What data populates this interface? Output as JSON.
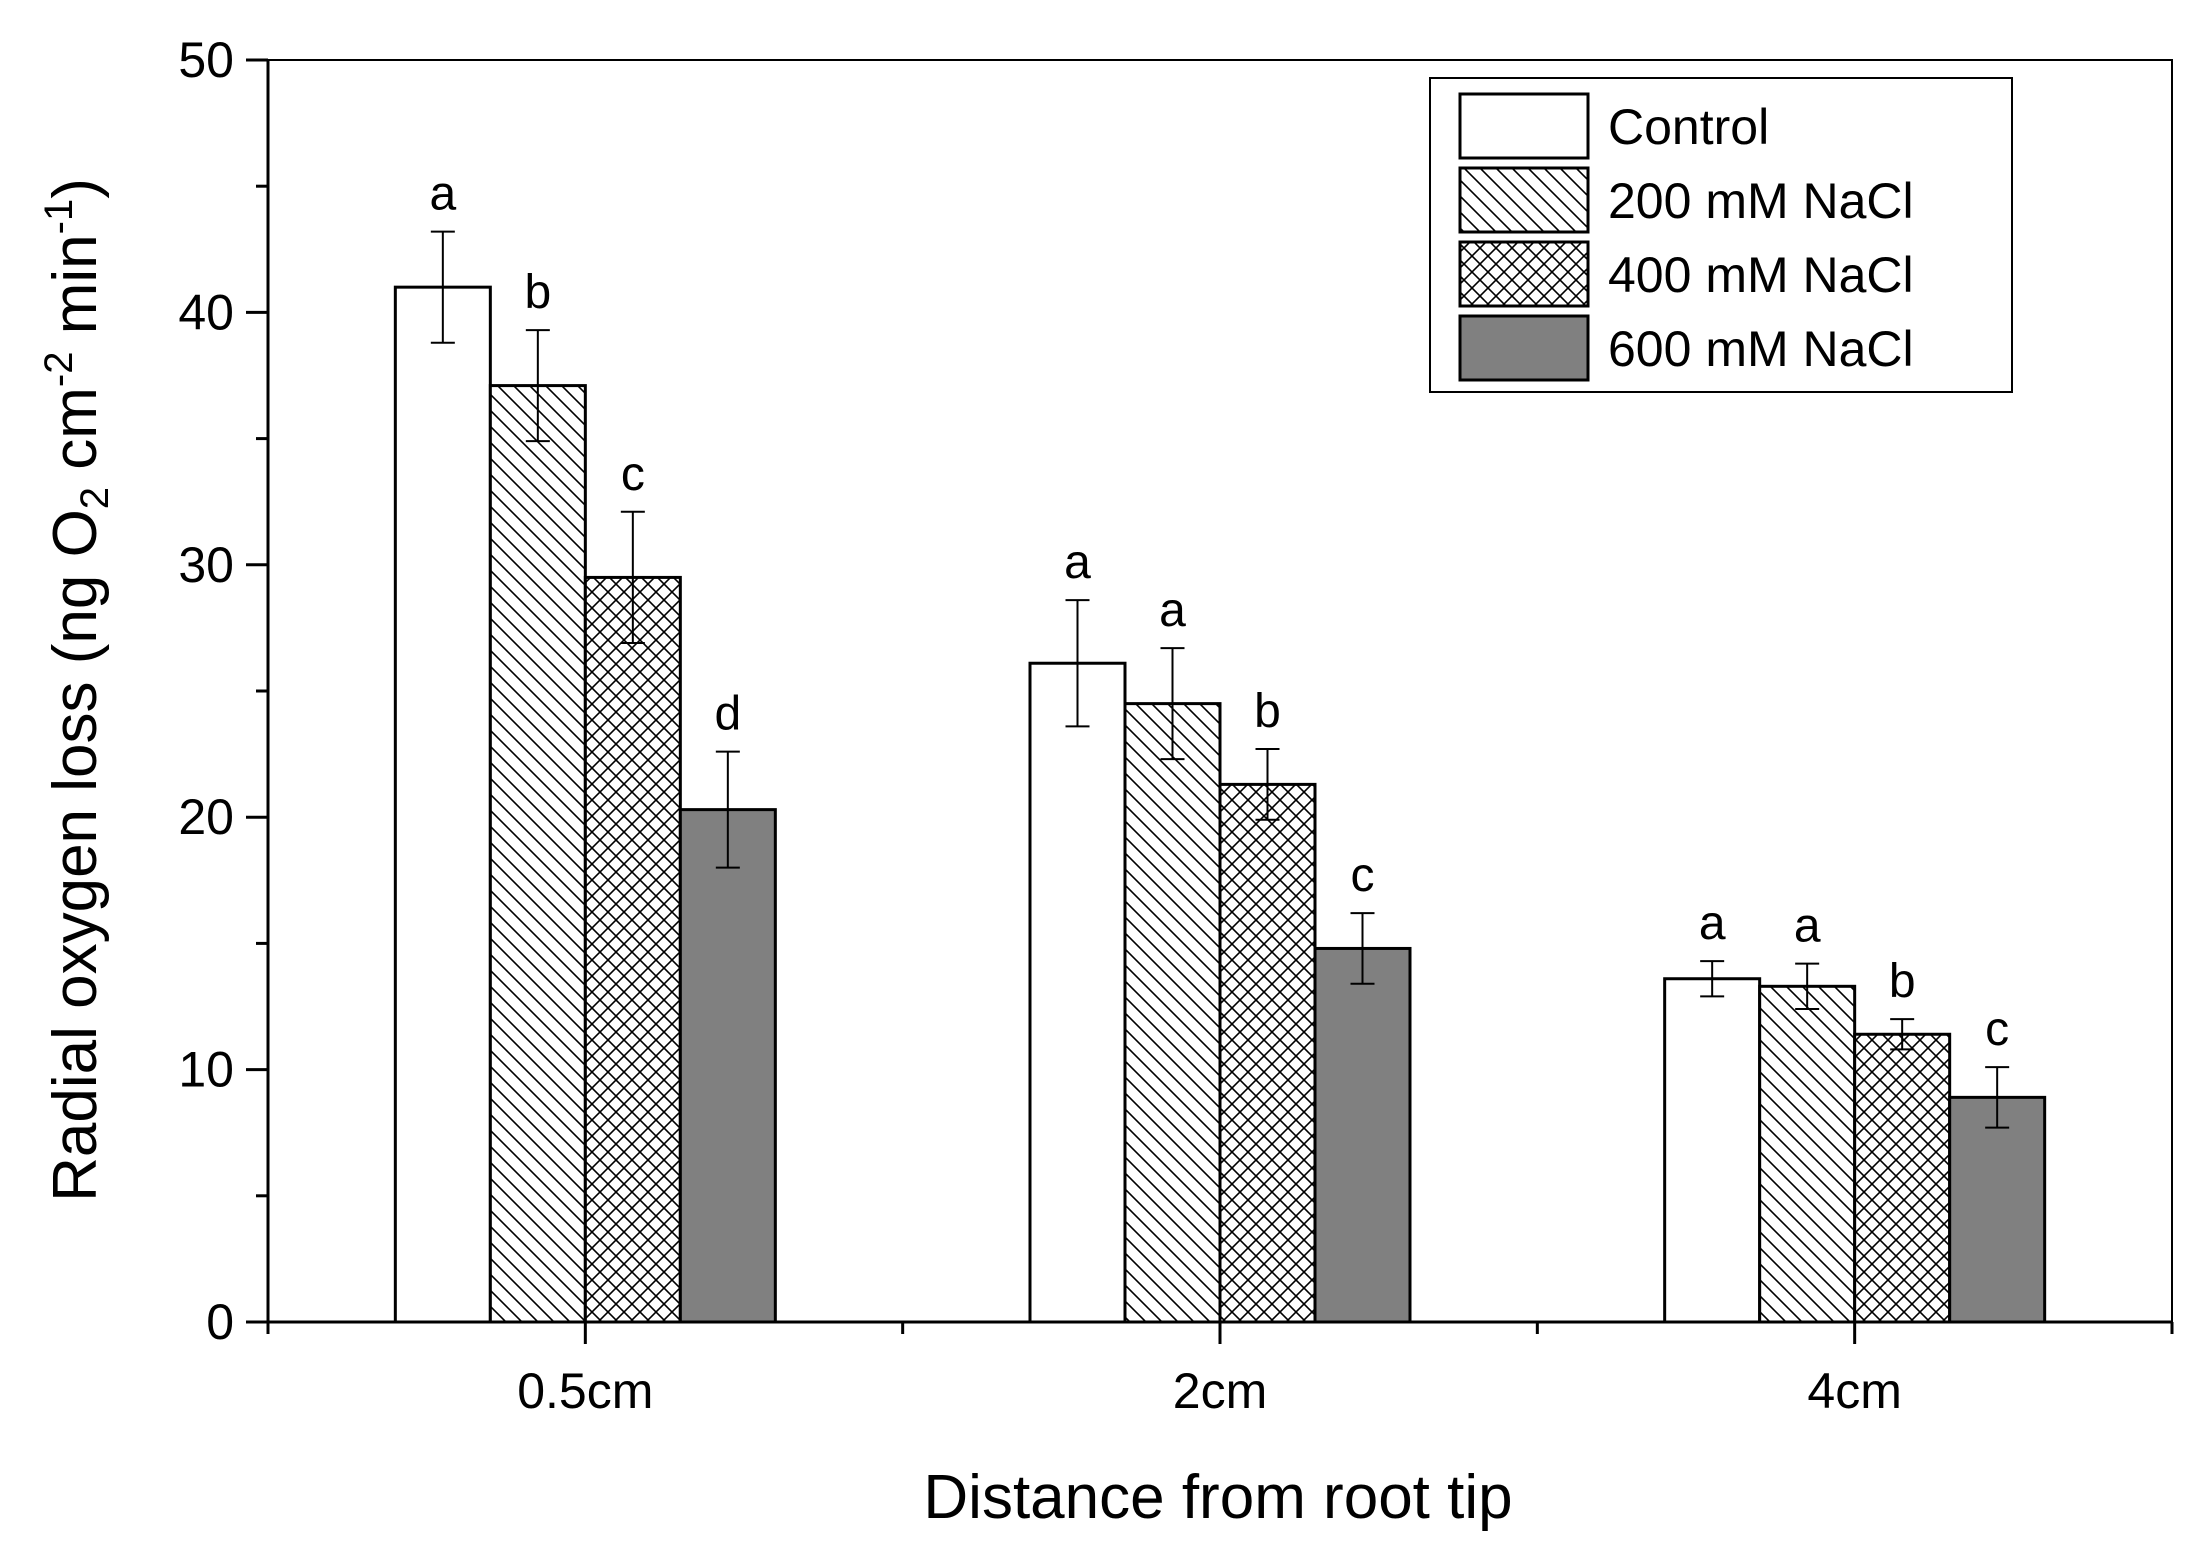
{
  "chart_data": {
    "type": "bar",
    "title": "",
    "xlabel": "Distance from root tip",
    "ylabel": {
      "main": "Radial oxygen loss (ng O",
      "sub": "2",
      "mid1": " cm",
      "sup1": "-2",
      "mid2": " min",
      "sup2": "-1",
      "end": ")"
    },
    "ylim": [
      0,
      50
    ],
    "yticks": [
      "0",
      "10",
      "20",
      "30",
      "40",
      "50"
    ],
    "categories": [
      "0.5cm",
      "2cm",
      "4cm"
    ],
    "series": [
      {
        "name": "Control",
        "pattern": "none",
        "fill": "#ffffff",
        "values": [
          41.0,
          26.1,
          13.6
        ],
        "errors": [
          2.2,
          2.5,
          0.7
        ],
        "letters": [
          "a",
          "a",
          "a"
        ]
      },
      {
        "name": "200 mM NaCl",
        "pattern": "diagonal",
        "fill": "#ffffff",
        "values": [
          37.1,
          24.5,
          13.3
        ],
        "errors": [
          2.2,
          2.2,
          0.9
        ],
        "letters": [
          "b",
          "a",
          "a"
        ]
      },
      {
        "name": "400 mM NaCl",
        "pattern": "crosshatch",
        "fill": "#ffffff",
        "values": [
          29.5,
          21.3,
          11.4
        ],
        "errors": [
          2.6,
          1.4,
          0.6
        ],
        "letters": [
          "c",
          "b",
          "b"
        ]
      },
      {
        "name": "600 mM NaCl",
        "pattern": "solid",
        "fill": "#808080",
        "values": [
          20.3,
          14.8,
          8.9
        ],
        "errors": [
          2.3,
          1.4,
          1.2
        ],
        "letters": [
          "d",
          "c",
          "c"
        ]
      }
    ],
    "legend_position": "top-right",
    "grid": false
  }
}
